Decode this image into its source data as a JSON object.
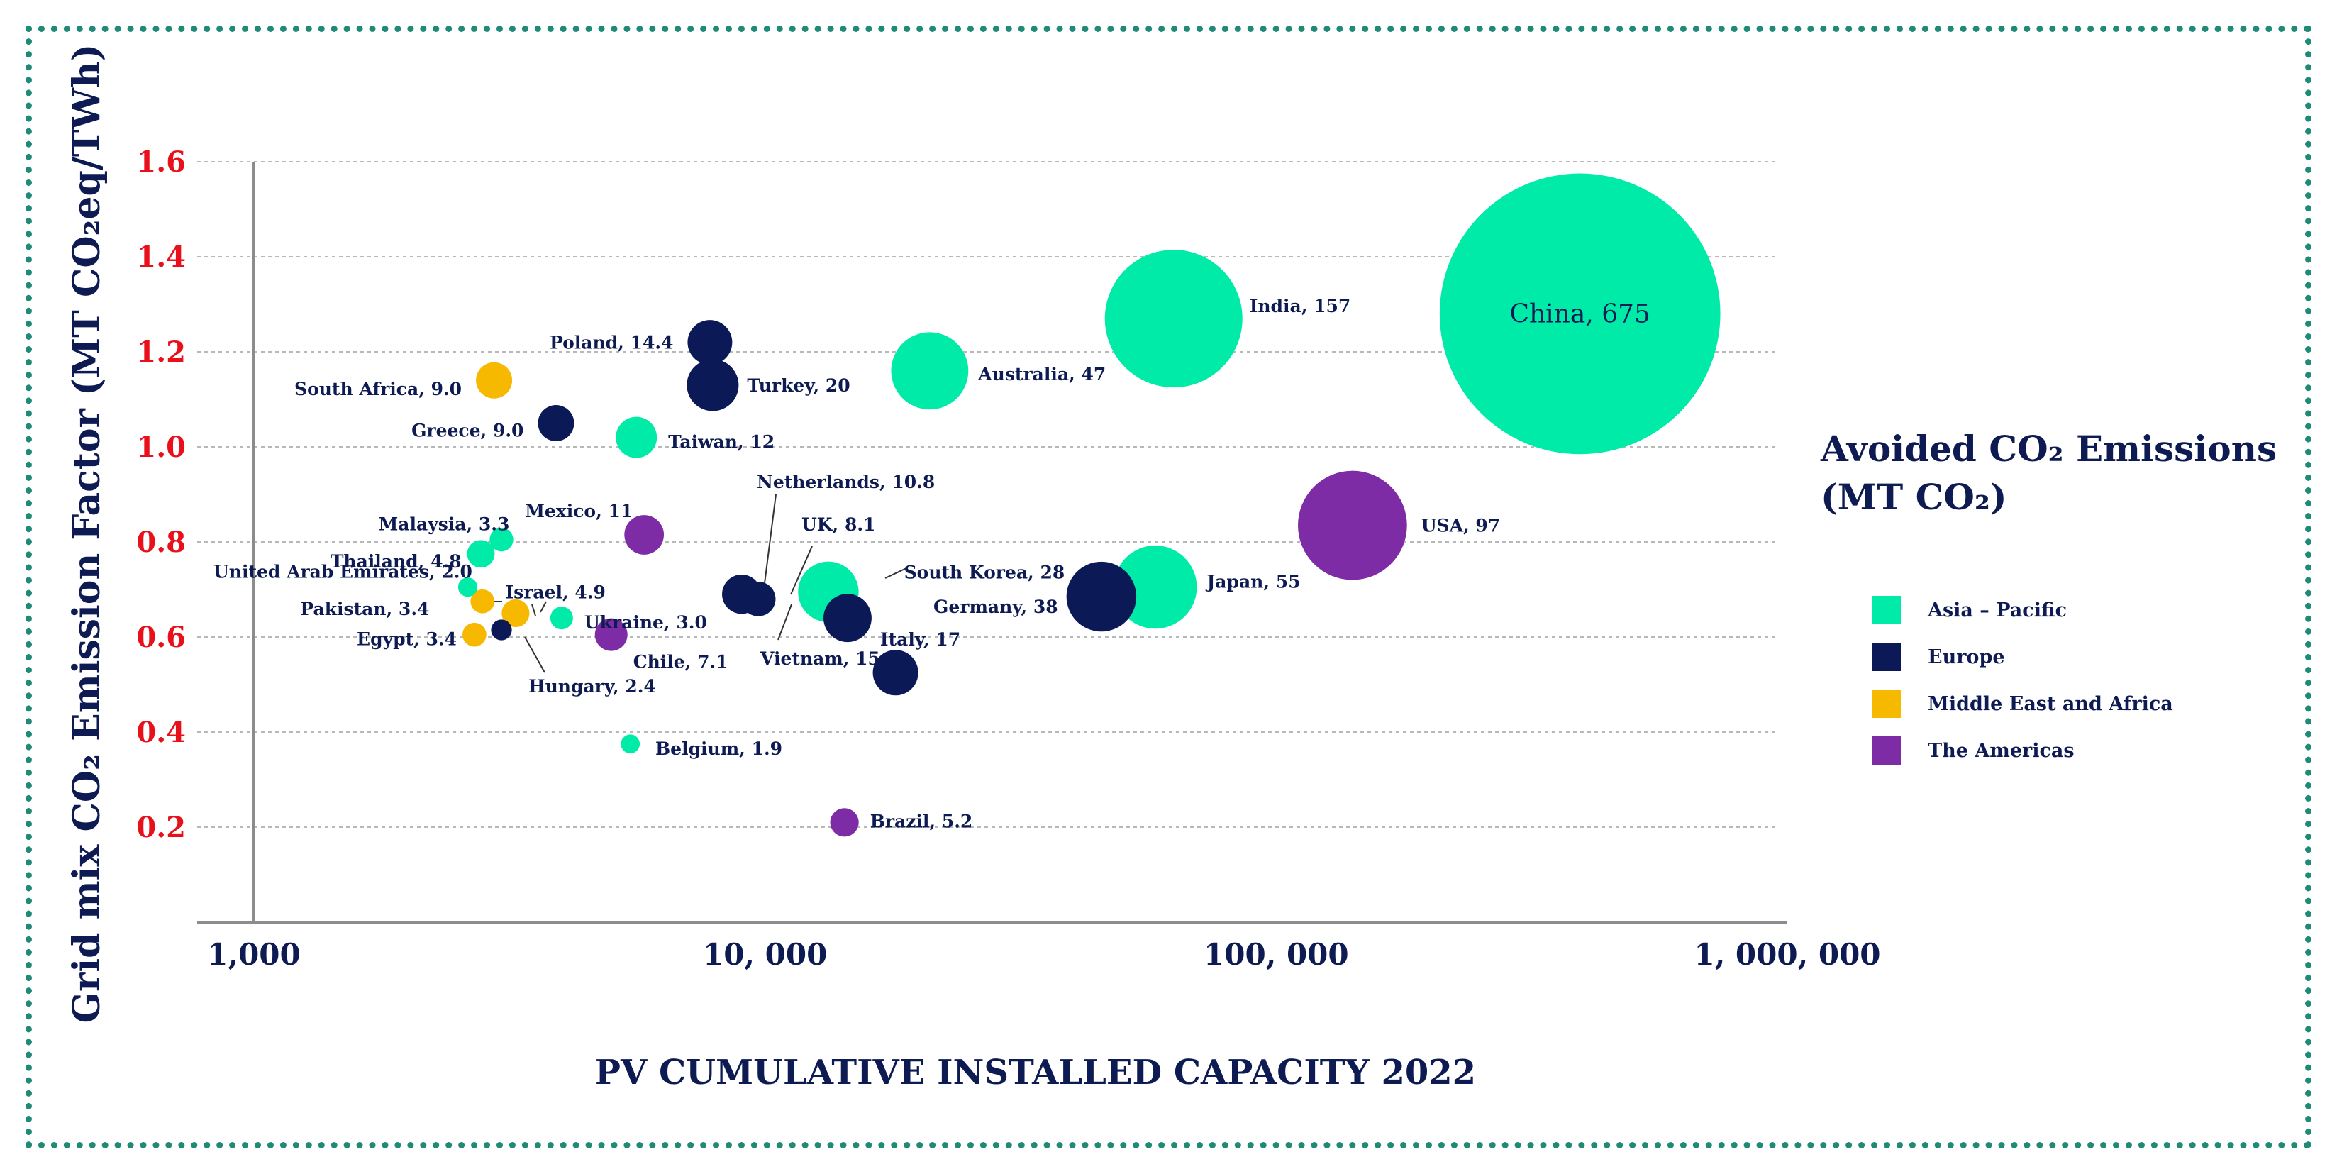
{
  "chart_data": {
    "type": "scatter",
    "subtype": "bubble",
    "x_scale": "log",
    "xlabel": "PV CUMULATIVE INSTALLED CAPACITY 2022",
    "ylabel": "Grid mix CO₂ Emission Factor (MT CO₂eq/TWh)",
    "xlim": [
      1000,
      1000000
    ],
    "ylim": [
      0,
      1.6
    ],
    "x_ticks": [
      1000,
      10000,
      100000,
      1000000
    ],
    "x_tick_labels": [
      "1,000",
      "10, 000",
      "100, 000",
      "1, 000, 000"
    ],
    "y_ticks": [
      0.2,
      0.4,
      0.6,
      0.8,
      1.0,
      1.2,
      1.4,
      1.6
    ],
    "y_tick_labels": [
      "0.2",
      "0.4",
      "0.6",
      "0.8",
      "1.0",
      "1.2",
      "1.4",
      "1.6"
    ],
    "legend": {
      "title": "Avoided CO₂ Emissions (MT CO₂)",
      "title_line1": "Avoided CO₂ Emissions",
      "title_line2": "(MT CO₂)",
      "position": "right",
      "entries": [
        {
          "name": "Asia – Pacific",
          "color": "#00eaa8"
        },
        {
          "name": "Europe",
          "color": "#0b1a56"
        },
        {
          "name": "Middle East and Africa",
          "color": "#f7b800"
        },
        {
          "name": "The Americas",
          "color": "#7d2ca6"
        }
      ]
    },
    "region_colors": {
      "Asia-Pacific": "#00eaa8",
      "Europe": "#0b1a56",
      "Middle East and Africa": "#f7b800",
      "The Americas": "#7d2ca6"
    },
    "points": [
      {
        "country": "China",
        "label": "China, 675",
        "avoided": 675,
        "x": 393000,
        "y": 1.28,
        "region": "Asia-Pacific"
      },
      {
        "country": "India",
        "label": "India, 157",
        "avoided": 157,
        "x": 63000,
        "y": 1.27,
        "region": "Asia-Pacific"
      },
      {
        "country": "USA",
        "label": "USA, 97",
        "avoided": 97,
        "x": 141000,
        "y": 0.835,
        "region": "The Americas"
      },
      {
        "country": "Japan",
        "label": "Japan, 55",
        "avoided": 55,
        "x": 58000,
        "y": 0.705,
        "region": "Asia-Pacific"
      },
      {
        "country": "Australia",
        "label": "Australia, 47",
        "avoided": 47,
        "x": 21000,
        "y": 1.16,
        "region": "Asia-Pacific"
      },
      {
        "country": "Germany",
        "label": "Germany, 38",
        "avoided": 38,
        "x": 45500,
        "y": 0.685,
        "region": "Europe"
      },
      {
        "country": "South Korea",
        "label": "South Korea, 28",
        "avoided": 28,
        "x": 13300,
        "y": 0.695,
        "region": "Asia-Pacific"
      },
      {
        "country": "Turkey",
        "label": "Turkey, 20",
        "avoided": 20,
        "x": 7900,
        "y": 1.13,
        "region": "Europe"
      },
      {
        "country": "Italy",
        "label": "Italy, 17",
        "avoided": 17,
        "x": 14500,
        "y": 0.64,
        "region": "Europe"
      },
      {
        "country": "Vietnam",
        "label": "Vietnam, 15",
        "avoided": 15,
        "x": 18000,
        "y": 0.525,
        "region": "Europe"
      },
      {
        "country": "Poland",
        "label": "Poland, 14.4",
        "avoided": 14.4,
        "x": 7800,
        "y": 1.22,
        "region": "Europe"
      },
      {
        "country": "Taiwan",
        "label": "Taiwan, 12",
        "avoided": 12,
        "x": 5600,
        "y": 1.02,
        "region": "Asia-Pacific"
      },
      {
        "country": "Mexico",
        "label": "Mexico, 11",
        "avoided": 11,
        "x": 5800,
        "y": 0.815,
        "region": "The Americas"
      },
      {
        "country": "Netherlands",
        "label": "Netherlands, 10.8",
        "avoided": 10.8,
        "x": 9000,
        "y": 0.69,
        "region": "Europe"
      },
      {
        "country": "South Africa",
        "label": "South Africa, 9.0",
        "avoided": 9.0,
        "x": 2950,
        "y": 1.14,
        "region": "Middle East and Africa"
      },
      {
        "country": "Greece",
        "label": "Greece, 9.0",
        "avoided": 9.0,
        "x": 3900,
        "y": 1.05,
        "region": "Europe"
      },
      {
        "country": "UK",
        "label": "UK, 8.1",
        "avoided": 8.1,
        "x": 9700,
        "y": 0.68,
        "region": "Europe"
      },
      {
        "country": "Chile",
        "label": "Chile, 7.1",
        "avoided": 7.1,
        "x": 5000,
        "y": 0.605,
        "region": "The Americas"
      },
      {
        "country": "Brazil",
        "label": "Brazil, 5.2",
        "avoided": 5.2,
        "x": 14300,
        "y": 0.21,
        "region": "The Americas"
      },
      {
        "country": "Israel",
        "label": "Israel, 4.9",
        "avoided": 4.9,
        "x": 3250,
        "y": 0.65,
        "region": "Middle East and Africa"
      },
      {
        "country": "Thailand",
        "label": "Thailand, 4.8",
        "avoided": 4.8,
        "x": 2780,
        "y": 0.775,
        "region": "Asia-Pacific"
      },
      {
        "country": "Malaysia",
        "label": "Malaysia, 3.3",
        "avoided": 3.3,
        "x": 3050,
        "y": 0.805,
        "region": "Asia-Pacific"
      },
      {
        "country": "Pakistan",
        "label": "Pakistan, 3.4",
        "avoided": 3.4,
        "x": 2800,
        "y": 0.675,
        "region": "Middle East and Africa"
      },
      {
        "country": "Egypt",
        "label": "Egypt, 3.4",
        "avoided": 3.4,
        "x": 2700,
        "y": 0.605,
        "region": "Middle East and Africa"
      },
      {
        "country": "Ukraine",
        "label": "Ukraine, 3.0",
        "avoided": 3.0,
        "x": 4000,
        "y": 0.64,
        "region": "Asia-Pacific"
      },
      {
        "country": "Hungary",
        "label": "Hungary, 2.4",
        "avoided": 2.4,
        "x": 3050,
        "y": 0.615,
        "region": "Europe"
      },
      {
        "country": "United Arab Emirates",
        "label": "United Arab Emirates, 2.0",
        "avoided": 2.0,
        "x": 2620,
        "y": 0.705,
        "region": "Asia-Pacific"
      },
      {
        "country": "Belgium",
        "label": "Belgium, 1.9",
        "avoided": 1.9,
        "x": 5450,
        "y": 0.375,
        "region": "Asia-Pacific"
      }
    ]
  }
}
